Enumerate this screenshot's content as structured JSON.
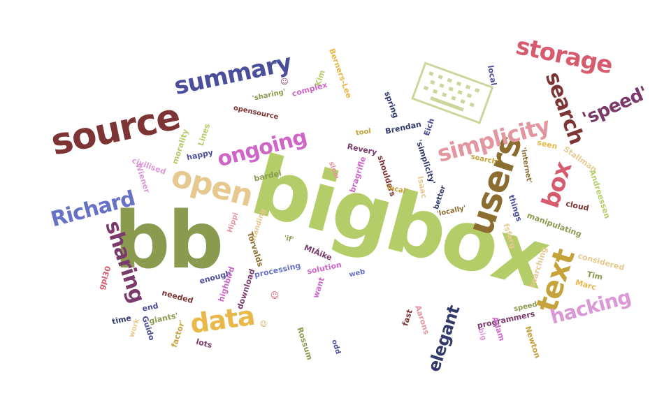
{
  "colors": {
    "olive": "#8a9a4f",
    "lime": "#b4cd68",
    "maroon": "#7d3434",
    "navy": "#4b4e9a",
    "periwinkle": "#6771c6",
    "orchid": "#cd66c7",
    "pink": "#e396a0",
    "rose": "#d65b6e",
    "plum": "#7a3a6b",
    "brown": "#8a6d2f",
    "gold": "#e8b84a",
    "tan": "#e6c98f",
    "mustard": "#c6a23a",
    "lavender": "#da98d6",
    "darknavy": "#333a6b"
  },
  "words": [
    {
      "text": "bigbox",
      "color": "lime"
    },
    {
      "text": "bb",
      "color": "olive"
    },
    {
      "text": "source",
      "color": "maroon"
    },
    {
      "text": "users",
      "color": "brown"
    },
    {
      "text": "open",
      "color": "tan"
    },
    {
      "text": "text",
      "color": "mustard"
    },
    {
      "text": "data",
      "color": "gold"
    },
    {
      "text": "summary",
      "color": "navy"
    },
    {
      "text": "storage",
      "color": "rose"
    },
    {
      "text": "search",
      "color": "maroon"
    },
    {
      "text": "box",
      "color": "rose"
    },
    {
      "text": "simplicity",
      "color": "pink"
    },
    {
      "text": "'speed'",
      "color": "plum"
    },
    {
      "text": "ongoing",
      "color": "orchid"
    },
    {
      "text": "Richard",
      "color": "periwinkle"
    },
    {
      "text": "sharing",
      "color": "plum"
    },
    {
      "text": "hacking",
      "color": "lavender"
    },
    {
      "text": "elegant",
      "color": "darknavy"
    },
    {
      "text": "Berners-Lee",
      "color": "gold"
    },
    {
      "text": "Kim",
      "color": "lime"
    },
    {
      "text": "complex",
      "color": "orchid"
    },
    {
      "text": "'sharing'",
      "color": "olive"
    },
    {
      "text": "local",
      "color": "navy"
    },
    {
      "text": "opensource",
      "color": "maroon"
    },
    {
      "text": "spring",
      "color": "darknavy"
    },
    {
      "text": "Brendan",
      "color": "darknavy"
    },
    {
      "text": "Eich",
      "color": "navy"
    },
    {
      "text": "tool",
      "color": "mustard"
    },
    {
      "text": "Lines",
      "color": "lime"
    },
    {
      "text": "morality",
      "color": "lime"
    },
    {
      "text": "happy",
      "color": "navy"
    },
    {
      "text": "civilised",
      "color": "lavender"
    },
    {
      "text": "Wiener",
      "color": "lavender"
    },
    {
      "text": "Revery",
      "color": "plum"
    },
    {
      "text": "'simplicity'",
      "color": "darknavy"
    },
    {
      "text": "slow",
      "color": "pink"
    },
    {
      "text": "bragrifle",
      "color": "orchid"
    },
    {
      "text": "shoulders",
      "color": "maroon"
    },
    {
      "text": "'search'",
      "color": "mustard"
    },
    {
      "text": "seen",
      "color": "gold"
    },
    {
      "text": "Stallman",
      "color": "tan"
    },
    {
      "text": "'internet'",
      "color": "brown"
    },
    {
      "text": "Andreessen",
      "color": "lime"
    },
    {
      "text": "cloud",
      "color": "maroon"
    },
    {
      "text": "bardel",
      "color": "olive"
    },
    {
      "text": "Isaac",
      "color": "tan"
    },
    {
      "text": "'local'",
      "color": "mustard"
    },
    {
      "text": "better",
      "color": "darknavy"
    },
    {
      "text": "'locally'",
      "color": "brown"
    },
    {
      "text": "things",
      "color": "navy"
    },
    {
      "text": "manipulating",
      "color": "olive"
    },
    {
      "text": "fsfarg",
      "color": "tan"
    },
    {
      "text": "Hippi",
      "color": "pink"
    },
    {
      "text": "standing",
      "color": "tan"
    },
    {
      "text": "'if'",
      "color": "olive"
    },
    {
      "text": "Torvalds",
      "color": "brown"
    },
    {
      "text": "MIÁike",
      "color": "plum"
    },
    {
      "text": "solution",
      "color": "orchid"
    },
    {
      "text": "processing",
      "color": "periwinkle"
    },
    {
      "text": "enough",
      "color": "navy"
    },
    {
      "text": "highbird",
      "color": "orchid"
    },
    {
      "text": "download",
      "color": "plum"
    },
    {
      "text": "web",
      "color": "periwinkle"
    },
    {
      "text": "want",
      "color": "orchid"
    },
    {
      "text": "searching",
      "color": "tan"
    },
    {
      "text": "considered",
      "color": "tan"
    },
    {
      "text": "Tim",
      "color": "olive"
    },
    {
      "text": "Marc",
      "color": "gold"
    },
    {
      "text": "gpl30",
      "color": "rose"
    },
    {
      "text": "needed",
      "color": "maroon"
    },
    {
      "text": "end",
      "color": "navy"
    },
    {
      "text": "giants'",
      "color": "olive"
    },
    {
      "text": "time",
      "color": "darknavy"
    },
    {
      "text": "Guido",
      "color": "navy"
    },
    {
      "text": "work",
      "color": "tan"
    },
    {
      "text": "factor'",
      "color": "mustard"
    },
    {
      "text": "lots",
      "color": "plum"
    },
    {
      "text": "Rossum",
      "color": "olive"
    },
    {
      "text": "odd",
      "color": "navy"
    },
    {
      "text": "fast",
      "color": "maroon"
    },
    {
      "text": "Aarons",
      "color": "pink"
    },
    {
      "text": "programmers",
      "color": "plum"
    },
    {
      "text": "speed",
      "color": "olive"
    },
    {
      "text": "Adam",
      "color": "orchid"
    },
    {
      "text": "big",
      "color": "lavender"
    },
    {
      "text": "Newton",
      "color": "mustard"
    },
    {
      "text": "☺",
      "color": "rose"
    },
    {
      "text": "☺",
      "color": "plum"
    },
    {
      "text": "☺",
      "color": "mustard"
    }
  ]
}
